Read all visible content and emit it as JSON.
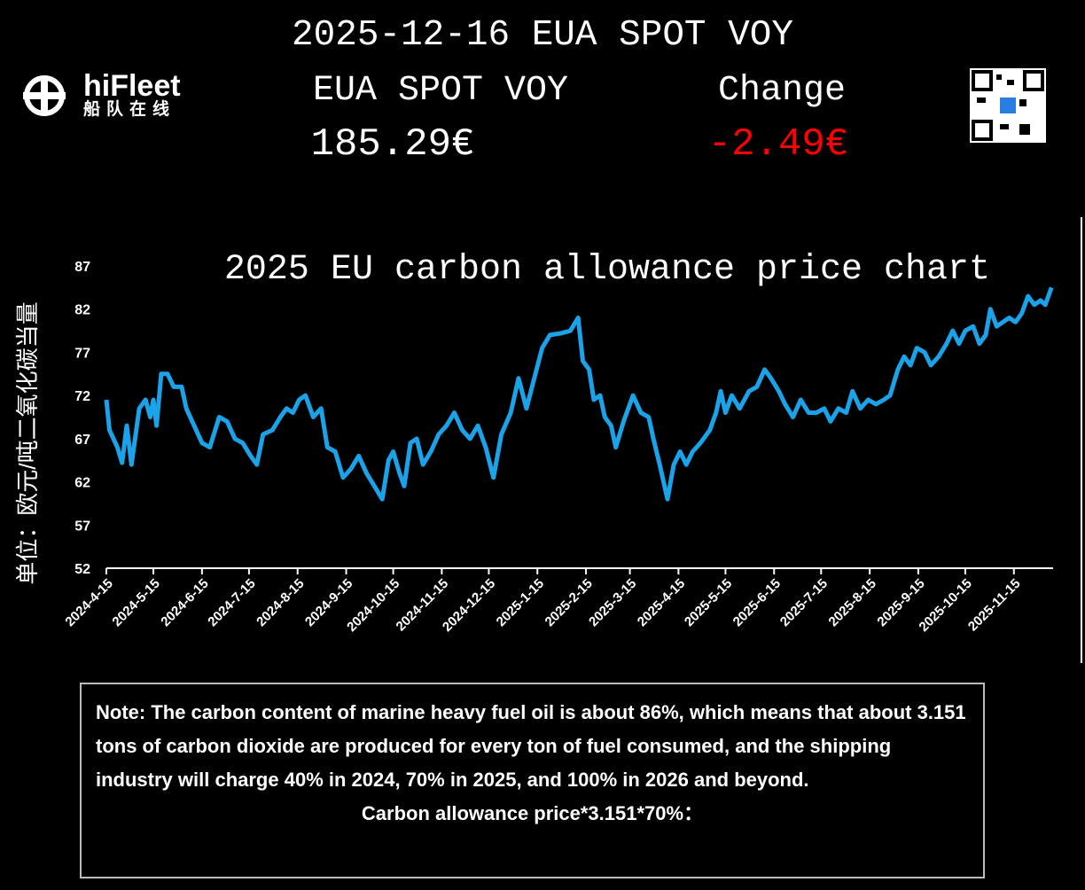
{
  "header": {
    "title": "2025-12-16 EUA SPOT VOY",
    "logo_name": "hiFleet",
    "logo_subtitle": "船队在线",
    "price_label": "EUA SPOT VOY",
    "price_value": "185.29€",
    "change_label": "Change",
    "change_value": "-2.49€"
  },
  "chart_data": {
    "type": "line",
    "title": "2025 EU carbon allowance price chart",
    "y_label": "单位：欧元/吨二氧化碳当量",
    "xlim": [
      "2024-4-15",
      "2025-12-10"
    ],
    "xticks": [
      "2024-4-15",
      "2024-5-15",
      "2024-6-15",
      "2024-7-15",
      "2024-8-15",
      "2024-9-15",
      "2024-10-15",
      "2024-11-15",
      "2024-12-15",
      "2025-1-15",
      "2025-2-15",
      "2025-3-15",
      "2025-4-15",
      "2025-5-15",
      "2025-6-15",
      "2025-7-15",
      "2025-8-15",
      "2025-9-15",
      "2025-10-15",
      "2025-11-15"
    ],
    "ylim": [
      52,
      87
    ],
    "yticks": [
      52,
      57,
      62,
      67,
      72,
      77,
      82,
      87
    ],
    "grid": false,
    "x": [
      "2024-4-15",
      "2024-4-17",
      "2024-4-22",
      "2024-4-25",
      "2024-4-28",
      "2024-5-1",
      "2024-5-6",
      "2024-5-10",
      "2024-5-13",
      "2024-5-15",
      "2024-5-17",
      "2024-5-20",
      "2024-5-24",
      "2024-5-28",
      "2024-6-2",
      "2024-6-5",
      "2024-6-10",
      "2024-6-15",
      "2024-6-20",
      "2024-6-26",
      "2024-7-1",
      "2024-7-6",
      "2024-7-11",
      "2024-7-16",
      "2024-7-20",
      "2024-7-24",
      "2024-7-30",
      "2024-8-4",
      "2024-8-8",
      "2024-8-12",
      "2024-8-16",
      "2024-8-20",
      "2024-8-25",
      "2024-8-30",
      "2024-9-3",
      "2024-9-8",
      "2024-9-13",
      "2024-9-18",
      "2024-9-23",
      "2024-9-28",
      "2024-10-3",
      "2024-10-8",
      "2024-10-12",
      "2024-10-15",
      "2024-10-19",
      "2024-10-22",
      "2024-10-26",
      "2024-10-30",
      "2024-11-3",
      "2024-11-8",
      "2024-11-13",
      "2024-11-18",
      "2024-11-23",
      "2024-11-28",
      "2024-12-3",
      "2024-12-8",
      "2024-12-13",
      "2024-12-18",
      "2024-12-23",
      "2024-12-29",
      "2025-1-3",
      "2025-1-8",
      "2025-1-13",
      "2025-1-18",
      "2025-1-23",
      "2025-1-30",
      "2025-2-5",
      "2025-2-10",
      "2025-2-13",
      "2025-2-17",
      "2025-2-20",
      "2025-2-24",
      "2025-2-27",
      "2025-3-3",
      "2025-3-6",
      "2025-3-11",
      "2025-3-17",
      "2025-3-22",
      "2025-3-27",
      "2025-3-30",
      "2025-4-3",
      "2025-4-8",
      "2025-4-12",
      "2025-4-16",
      "2025-4-20",
      "2025-4-24",
      "2025-4-29",
      "2025-5-5",
      "2025-5-9",
      "2025-5-12",
      "2025-5-15",
      "2025-5-19",
      "2025-5-24",
      "2025-5-30",
      "2025-6-4",
      "2025-6-9",
      "2025-6-13",
      "2025-6-18",
      "2025-6-22",
      "2025-6-27",
      "2025-7-2",
      "2025-7-7",
      "2025-7-12",
      "2025-7-17",
      "2025-7-21",
      "2025-7-26",
      "2025-7-31",
      "2025-8-4",
      "2025-8-9",
      "2025-8-14",
      "2025-8-19",
      "2025-8-24",
      "2025-8-28",
      "2025-9-2",
      "2025-9-6",
      "2025-9-10",
      "2025-9-14",
      "2025-9-19",
      "2025-9-23",
      "2025-9-28",
      "2025-10-3",
      "2025-10-7",
      "2025-10-11",
      "2025-10-15",
      "2025-10-20",
      "2025-10-24",
      "2025-10-28",
      "2025-10-31",
      "2025-11-4",
      "2025-11-8",
      "2025-11-12",
      "2025-11-16",
      "2025-11-20",
      "2025-11-24",
      "2025-11-28",
      "2025-12-2",
      "2025-12-5",
      "2025-12-9"
    ],
    "series": [
      {
        "color": "#1aa3e8",
        "values": [
          71.5,
          68,
          66,
          64.2,
          68.5,
          64,
          70.5,
          71.5,
          69.5,
          71.5,
          68.5,
          74.5,
          74.5,
          73,
          73,
          70.5,
          68.5,
          66.5,
          66,
          69.5,
          69,
          67,
          66.5,
          65,
          64,
          67.5,
          68,
          69.5,
          70.5,
          70,
          71.5,
          72,
          69.5,
          70.5,
          66,
          65.5,
          62.5,
          63.5,
          65,
          63,
          61.5,
          60,
          64.5,
          65.5,
          63,
          61.5,
          66.5,
          67,
          64,
          65.5,
          67.5,
          68.5,
          70,
          68,
          67,
          68.5,
          66,
          62.5,
          67.5,
          70,
          74,
          70.5,
          74,
          77.5,
          79,
          79.2,
          79.5,
          81,
          76,
          75,
          71.5,
          72,
          69.5,
          68.5,
          66,
          69,
          72,
          70,
          69.5,
          67,
          64,
          60,
          64,
          65.5,
          64,
          65.5,
          66.5,
          68,
          70,
          72.5,
          70,
          72,
          70.5,
          72.5,
          73,
          75,
          74,
          72.5,
          71,
          69.5,
          71.5,
          70,
          70,
          70.5,
          69,
          70.5,
          70,
          72.5,
          70.5,
          71.5,
          71,
          71.5,
          72,
          75,
          76.5,
          75.5,
          77.5,
          77,
          75.5,
          76.5,
          78,
          79.5,
          78,
          79.5,
          80,
          78,
          79,
          82,
          80,
          80.5,
          81,
          80.5,
          81.5,
          83.5,
          82.5,
          83,
          82.5,
          84.5
        ]
      }
    ]
  },
  "note": {
    "text": "Note: The carbon content of marine heavy fuel oil is about 86%, which means that about 3.151 tons of carbon dioxide are produced for every ton of fuel consumed, and the shipping industry will charge 40% in 2024, 70% in 2025, and 100% in 2026 and beyond.",
    "formula": "Carbon allowance price*3.151*70%："
  }
}
